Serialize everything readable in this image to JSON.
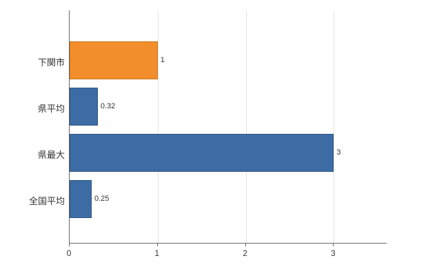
{
  "chart_data": {
    "type": "bar",
    "orientation": "horizontal",
    "title": "",
    "xlabel": "",
    "ylabel": "",
    "categories": [
      "下関市",
      "県平均",
      "県最大",
      "全国平均"
    ],
    "values": [
      1,
      0.32,
      3,
      0.25
    ],
    "value_labels": [
      "1",
      "0.32",
      "3",
      "0.25"
    ],
    "bar_colors": [
      "#f28e2b",
      "#3d6ca5",
      "#3d6ca5",
      "#3d6ca5"
    ],
    "bar_border_colors": [
      "#c9751c",
      "#2e5682",
      "#2e5682",
      "#2e5682"
    ],
    "xlim": [
      0,
      3.6
    ],
    "x_ticks": [
      0,
      1,
      2,
      3
    ],
    "x_tick_labels": [
      "0",
      "1",
      "2",
      "3"
    ],
    "grid": true,
    "legend": false,
    "axis_color": "#666666",
    "grid_color": "#e3e3e3"
  }
}
